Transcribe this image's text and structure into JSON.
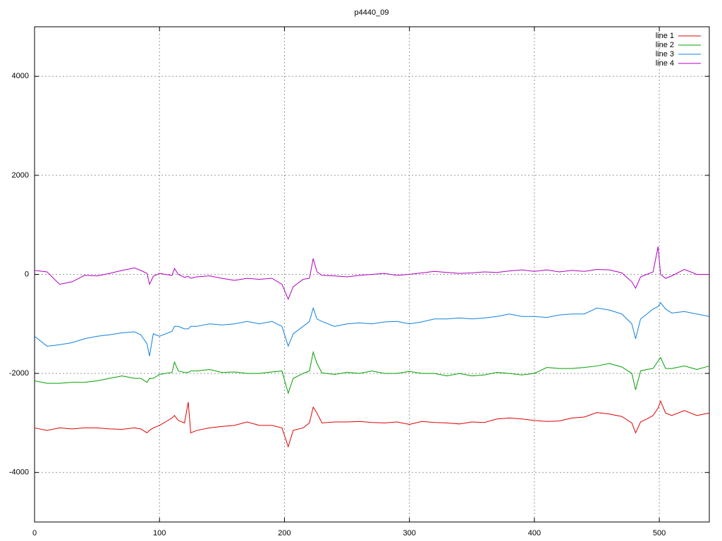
{
  "chart_data": {
    "type": "line",
    "title": "p4440_09",
    "x": [
      0,
      10,
      20,
      30,
      40,
      50,
      60,
      70,
      80,
      85,
      90,
      92,
      95,
      100,
      110,
      112,
      115,
      120,
      123,
      125,
      130,
      140,
      150,
      160,
      170,
      180,
      190,
      198,
      203,
      207,
      215,
      220,
      223,
      226,
      230,
      240,
      250,
      260,
      270,
      280,
      290,
      300,
      310,
      320,
      330,
      340,
      350,
      360,
      370,
      380,
      390,
      400,
      410,
      420,
      430,
      440,
      450,
      460,
      470,
      478,
      481,
      485,
      490,
      495,
      499,
      501,
      505,
      510,
      520,
      530,
      540
    ],
    "series": [
      {
        "name": "line 1",
        "color": "#e00000",
        "values": [
          -3100,
          -3150,
          -3100,
          -3120,
          -3100,
          -3100,
          -3120,
          -3130,
          -3100,
          -3120,
          -3200,
          -3150,
          -3100,
          -3050,
          -2900,
          -2850,
          -2950,
          -3000,
          -2580,
          -3200,
          -3150,
          -3100,
          -3070,
          -3050,
          -2980,
          -3050,
          -3050,
          -3100,
          -3480,
          -3150,
          -3100,
          -3000,
          -2680,
          -2800,
          -3000,
          -2980,
          -2980,
          -2970,
          -2990,
          -3000,
          -2980,
          -3030,
          -2970,
          -2990,
          -3000,
          -3020,
          -2980,
          -2990,
          -2920,
          -2900,
          -2920,
          -2950,
          -2970,
          -2960,
          -2900,
          -2880,
          -2790,
          -2820,
          -2870,
          -3000,
          -3200,
          -2980,
          -2920,
          -2850,
          -2700,
          -2560,
          -2800,
          -2850,
          -2750,
          -2850,
          -2800
        ]
      },
      {
        "name": "line 2",
        "color": "#00a000",
        "values": [
          -2150,
          -2200,
          -2200,
          -2180,
          -2180,
          -2150,
          -2100,
          -2050,
          -2100,
          -2100,
          -2180,
          -2100,
          -2100,
          -2020,
          -1980,
          -1770,
          -1950,
          -1980,
          -1980,
          -1950,
          -1950,
          -1920,
          -1980,
          -1970,
          -2000,
          -2000,
          -1970,
          -1950,
          -2400,
          -2100,
          -2000,
          -1950,
          -1570,
          -1800,
          -1990,
          -2020,
          -1980,
          -2000,
          -1950,
          -2000,
          -2000,
          -1960,
          -2000,
          -2000,
          -2050,
          -2000,
          -2050,
          -2030,
          -1980,
          -2000,
          -2030,
          -2000,
          -1880,
          -1900,
          -1900,
          -1880,
          -1850,
          -1800,
          -1870,
          -2000,
          -2330,
          -1950,
          -1920,
          -1900,
          -1750,
          -1680,
          -1900,
          -1900,
          -1850,
          -1920,
          -1850
        ]
      },
      {
        "name": "line 3",
        "color": "#1080e0",
        "values": [
          -1250,
          -1450,
          -1420,
          -1380,
          -1300,
          -1250,
          -1220,
          -1180,
          -1160,
          -1220,
          -1400,
          -1650,
          -1200,
          -1250,
          -1150,
          -1050,
          -1050,
          -1100,
          -1100,
          -1050,
          -1050,
          -1000,
          -1020,
          -1000,
          -950,
          -1000,
          -950,
          -1050,
          -1450,
          -1200,
          -1050,
          -950,
          -680,
          -900,
          -950,
          -1050,
          -1000,
          -980,
          -1000,
          -960,
          -950,
          -1000,
          -960,
          -900,
          -900,
          -880,
          -900,
          -880,
          -850,
          -800,
          -850,
          -850,
          -870,
          -820,
          -800,
          -800,
          -680,
          -720,
          -800,
          -1000,
          -1300,
          -900,
          -800,
          -700,
          -650,
          -570,
          -700,
          -780,
          -750,
          -800,
          -850
        ]
      },
      {
        "name": "line 4",
        "color": "#b000c0",
        "values": [
          80,
          50,
          -200,
          -150,
          -20,
          -30,
          20,
          80,
          130,
          80,
          20,
          -200,
          -40,
          20,
          -20,
          120,
          0,
          -60,
          -40,
          -80,
          -50,
          -30,
          -80,
          -120,
          -80,
          -100,
          -80,
          -200,
          -500,
          -250,
          -100,
          -80,
          320,
          50,
          -20,
          -30,
          -50,
          -20,
          0,
          20,
          -20,
          0,
          30,
          60,
          40,
          20,
          30,
          50,
          40,
          70,
          90,
          60,
          90,
          50,
          80,
          60,
          100,
          90,
          30,
          -150,
          -280,
          -50,
          0,
          50,
          560,
          0,
          -80,
          -30,
          100,
          0,
          0
        ]
      }
    ],
    "xlim": [
      0,
      540
    ],
    "ylim": [
      -5000,
      5000
    ],
    "xticks": [
      0,
      100,
      200,
      300,
      400,
      500
    ],
    "yticks": [
      -4000,
      -2000,
      0,
      2000,
      4000
    ],
    "grid": true,
    "legend": "top-right"
  }
}
